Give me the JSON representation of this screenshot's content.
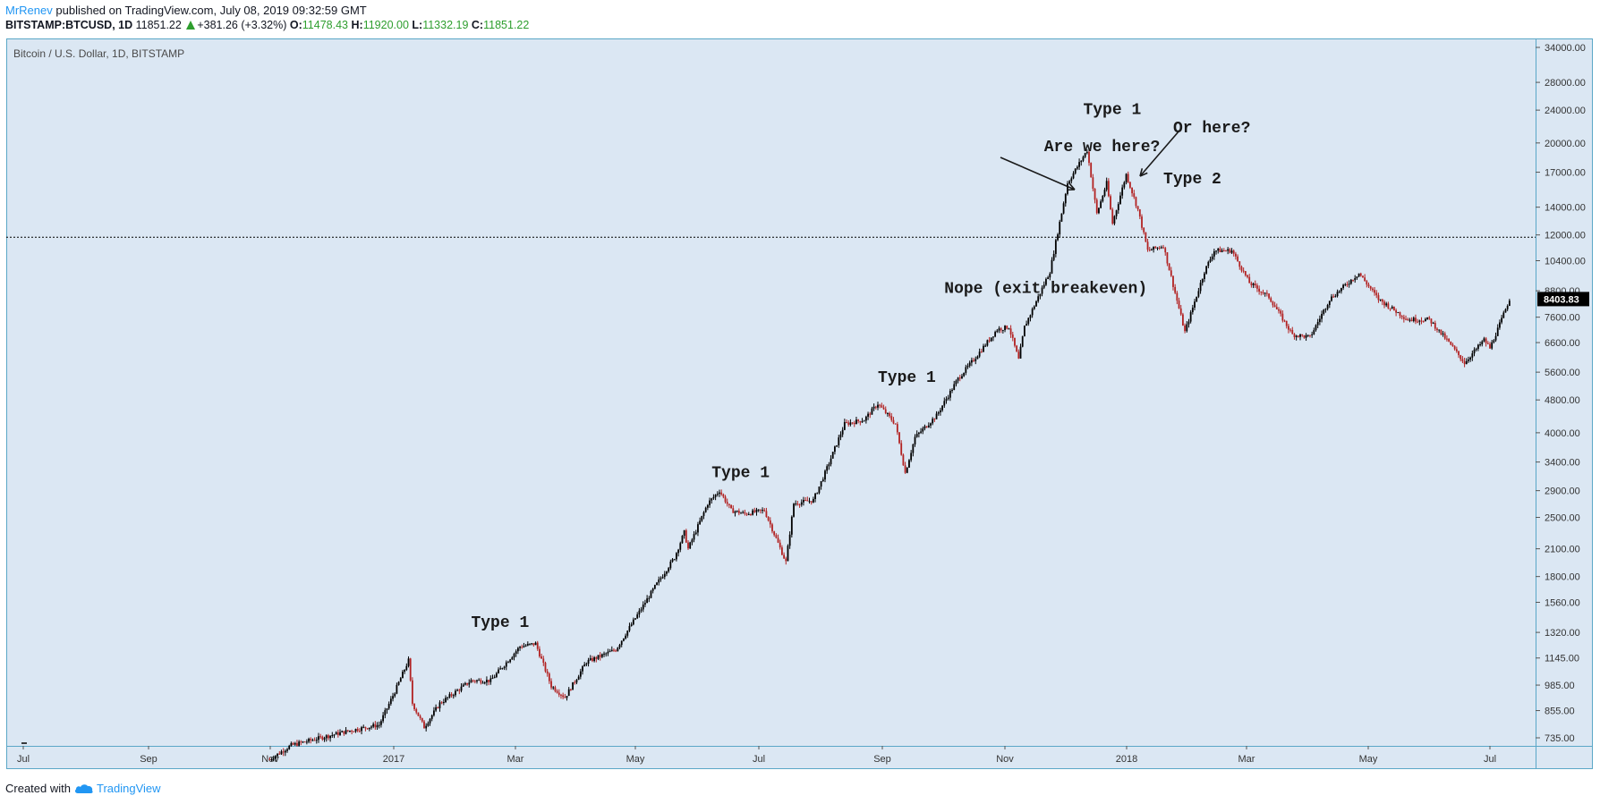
{
  "header": {
    "author": "MrRenev",
    "published_text": "published on TradingView.com, July 08, 2019 09:32:59 GMT",
    "symbol": "BITSTAMP:BTCUSD, 1D",
    "last": "11851.22",
    "change": "+381.26 (+3.32%)",
    "open_label": "O:",
    "open": "11478.43",
    "high_label": "H:",
    "high": "11920.00",
    "low_label": "L:",
    "low": "11332.19",
    "close_label": "C:",
    "close": "11851.22"
  },
  "footer": {
    "created_with": "Created with",
    "brand": "TradingView"
  },
  "chart_data": {
    "type": "candlestick",
    "title": "Bitcoin / U.S. Dollar, 1D, BITSTAMP",
    "scale": "log",
    "y_ticks": [
      735,
      855,
      985,
      1145,
      1320,
      1560,
      1800,
      2100,
      2500,
      2900,
      3400,
      4000,
      4800,
      5600,
      6600,
      7600,
      8800,
      10400,
      12000,
      14000,
      17000,
      20000,
      24000,
      28000,
      34000
    ],
    "y_tick_labels": [
      "735.00",
      "855.00",
      "985.00",
      "1145.00",
      "1320.00",
      "1560.00",
      "1800.00",
      "2100.00",
      "2500.00",
      "2900.00",
      "3400.00",
      "4000.00",
      "4800.00",
      "5600.00",
      "6600.00",
      "7600.00",
      "8800.00",
      "10400.00",
      "12000.00",
      "14000.00",
      "17000.00",
      "20000.00",
      "24000.00",
      "28000.00",
      "34000.00"
    ],
    "x_ticks": [
      "Jul",
      "Sep",
      "Nov",
      "2017",
      "Mar",
      "May",
      "Jul",
      "Sep",
      "Nov",
      "2018",
      "Mar",
      "May",
      "Jul"
    ],
    "x_range": [
      "2016-06-21",
      "2018-07-11"
    ],
    "price_label": "8403.83",
    "horizontal_line": 11851.22,
    "colors": {
      "up": "#000000",
      "down": "#b22222",
      "background": "#dbe7f3",
      "border": "#5aa7c7"
    },
    "price_path": [
      [
        "2016-10-25",
        652
      ],
      [
        "2016-11-05",
        705
      ],
      [
        "2016-11-20",
        735
      ],
      [
        "2016-12-05",
        765
      ],
      [
        "2016-12-20",
        790
      ],
      [
        "2016-12-28",
        950
      ],
      [
        "2017-01-04",
        1130
      ],
      [
        "2017-01-06",
        890
      ],
      [
        "2017-01-12",
        780
      ],
      [
        "2017-01-20",
        890
      ],
      [
        "2017-02-05",
        1010
      ],
      [
        "2017-02-15",
        1010
      ],
      [
        "2017-03-02",
        1220
      ],
      [
        "2017-03-10",
        1240
      ],
      [
        "2017-03-18",
        980
      ],
      [
        "2017-03-25",
        920
      ],
      [
        "2017-04-05",
        1120
      ],
      [
        "2017-04-20",
        1200
      ],
      [
        "2017-05-10",
        1700
      ],
      [
        "2017-05-20",
        2000
      ],
      [
        "2017-05-25",
        2300
      ],
      [
        "2017-05-27",
        2100
      ],
      [
        "2017-06-06",
        2700
      ],
      [
        "2017-06-12",
        2900
      ],
      [
        "2017-06-18",
        2600
      ],
      [
        "2017-06-25",
        2550
      ],
      [
        "2017-07-05",
        2600
      ],
      [
        "2017-07-16",
        1950
      ],
      [
        "2017-07-20",
        2700
      ],
      [
        "2017-07-30",
        2750
      ],
      [
        "2017-08-05",
        3200
      ],
      [
        "2017-08-15",
        4200
      ],
      [
        "2017-08-25",
        4300
      ],
      [
        "2017-09-01",
        4700
      ],
      [
        "2017-09-10",
        4200
      ],
      [
        "2017-09-15",
        3200
      ],
      [
        "2017-09-20",
        3900
      ],
      [
        "2017-10-01",
        4400
      ],
      [
        "2017-10-12",
        5400
      ],
      [
        "2017-10-20",
        6000
      ],
      [
        "2017-11-01",
        7100
      ],
      [
        "2017-11-07",
        7200
      ],
      [
        "2017-11-12",
        6000
      ],
      [
        "2017-11-15",
        7200
      ],
      [
        "2017-11-28",
        9800
      ],
      [
        "2017-12-07",
        16000
      ],
      [
        "2017-12-17",
        19200
      ],
      [
        "2017-12-22",
        13500
      ],
      [
        "2017-12-27",
        16000
      ],
      [
        "2017-12-30",
        12800
      ],
      [
        "2018-01-06",
        16800
      ],
      [
        "2018-01-12",
        13800
      ],
      [
        "2018-01-17",
        11000
      ],
      [
        "2018-01-25",
        11300
      ],
      [
        "2018-02-05",
        7000
      ],
      [
        "2018-02-15",
        9800
      ],
      [
        "2018-02-20",
        11000
      ],
      [
        "2018-03-01",
        11000
      ],
      [
        "2018-03-10",
        9200
      ],
      [
        "2018-03-20",
        8500
      ],
      [
        "2018-04-01",
        6900
      ],
      [
        "2018-04-10",
        6800
      ],
      [
        "2018-04-20",
        8400
      ],
      [
        "2018-05-05",
        9700
      ],
      [
        "2018-05-15",
        8400
      ],
      [
        "2018-05-30",
        7500
      ],
      [
        "2018-06-10",
        7500
      ],
      [
        "2018-06-20",
        6600
      ],
      [
        "2018-06-28",
        5900
      ],
      [
        "2018-07-08",
        6700
      ],
      [
        "2018-07-11",
        6400
      ],
      [
        "2018-07-16",
        7300
      ],
      [
        "2018-07-21",
        8400
      ]
    ],
    "annotations": [
      {
        "text": "Type 1",
        "date": "2017-02-05",
        "price": 1360
      },
      {
        "text": "Type 1",
        "date": "2017-06-08",
        "price": 3130
      },
      {
        "text": "Type 1",
        "date": "2017-09-01",
        "price": 5300
      },
      {
        "text": "Nope (exit breakeven)",
        "date": "2017-10-05",
        "price": 8700
      },
      {
        "text": "Type 1",
        "date": "2017-12-15",
        "price": 23500
      },
      {
        "text": "Are we here?",
        "date": "2017-11-25",
        "price": 19100
      },
      {
        "text": "Or here?",
        "date": "2018-01-30",
        "price": 21200
      },
      {
        "text": "Type 2",
        "date": "2018-01-25",
        "price": 16000
      }
    ]
  }
}
